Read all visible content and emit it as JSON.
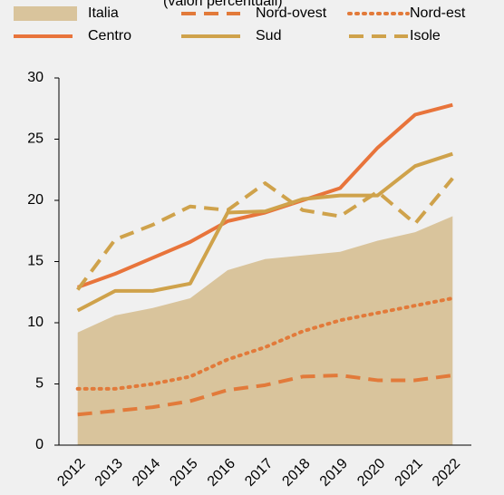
{
  "chart_data": {
    "type": "line",
    "subtitle": "(valori percentuali)",
    "categories": [
      "2012",
      "2013",
      "2014",
      "2015",
      "2016",
      "2017",
      "2018",
      "2019",
      "2020",
      "2021",
      "2022"
    ],
    "series": [
      {
        "name": "Italia",
        "color": "#d9c49c",
        "style": "area",
        "values": [
          9.2,
          10.6,
          11.2,
          12.0,
          14.3,
          15.2,
          15.5,
          15.8,
          16.7,
          17.4,
          18.7
        ]
      },
      {
        "name": "Nord-ovest",
        "color": "#e27a3a",
        "style": "dashed",
        "values": [
          2.5,
          2.8,
          3.1,
          3.6,
          4.5,
          4.9,
          5.6,
          5.7,
          5.3,
          5.3,
          5.7
        ]
      },
      {
        "name": "Nord-est",
        "color": "#e27a3a",
        "style": "dotted",
        "values": [
          4.6,
          4.6,
          5.0,
          5.6,
          7.0,
          8.0,
          9.3,
          10.2,
          10.8,
          11.4,
          12.0
        ]
      },
      {
        "name": "Centro",
        "color": "#e8743b",
        "style": "solid",
        "values": [
          12.9,
          14.0,
          15.3,
          16.6,
          18.3,
          19.0,
          20.0,
          21.0,
          24.3,
          27.0,
          27.8
        ]
      },
      {
        "name": "Sud",
        "color": "#cfa24b",
        "style": "solid",
        "values": [
          11.0,
          12.6,
          12.6,
          13.2,
          19.0,
          19.1,
          20.1,
          20.4,
          20.4,
          22.8,
          23.8
        ]
      },
      {
        "name": "Isole",
        "color": "#cfa24b",
        "style": "dashed",
        "values": [
          12.7,
          16.8,
          18.0,
          19.5,
          19.2,
          21.4,
          19.2,
          18.7,
          20.7,
          18.1,
          21.8
        ]
      }
    ],
    "ylim": [
      0,
      30
    ],
    "yticks": [
      0,
      5,
      10,
      15,
      20,
      25,
      30
    ],
    "grid": false
  }
}
